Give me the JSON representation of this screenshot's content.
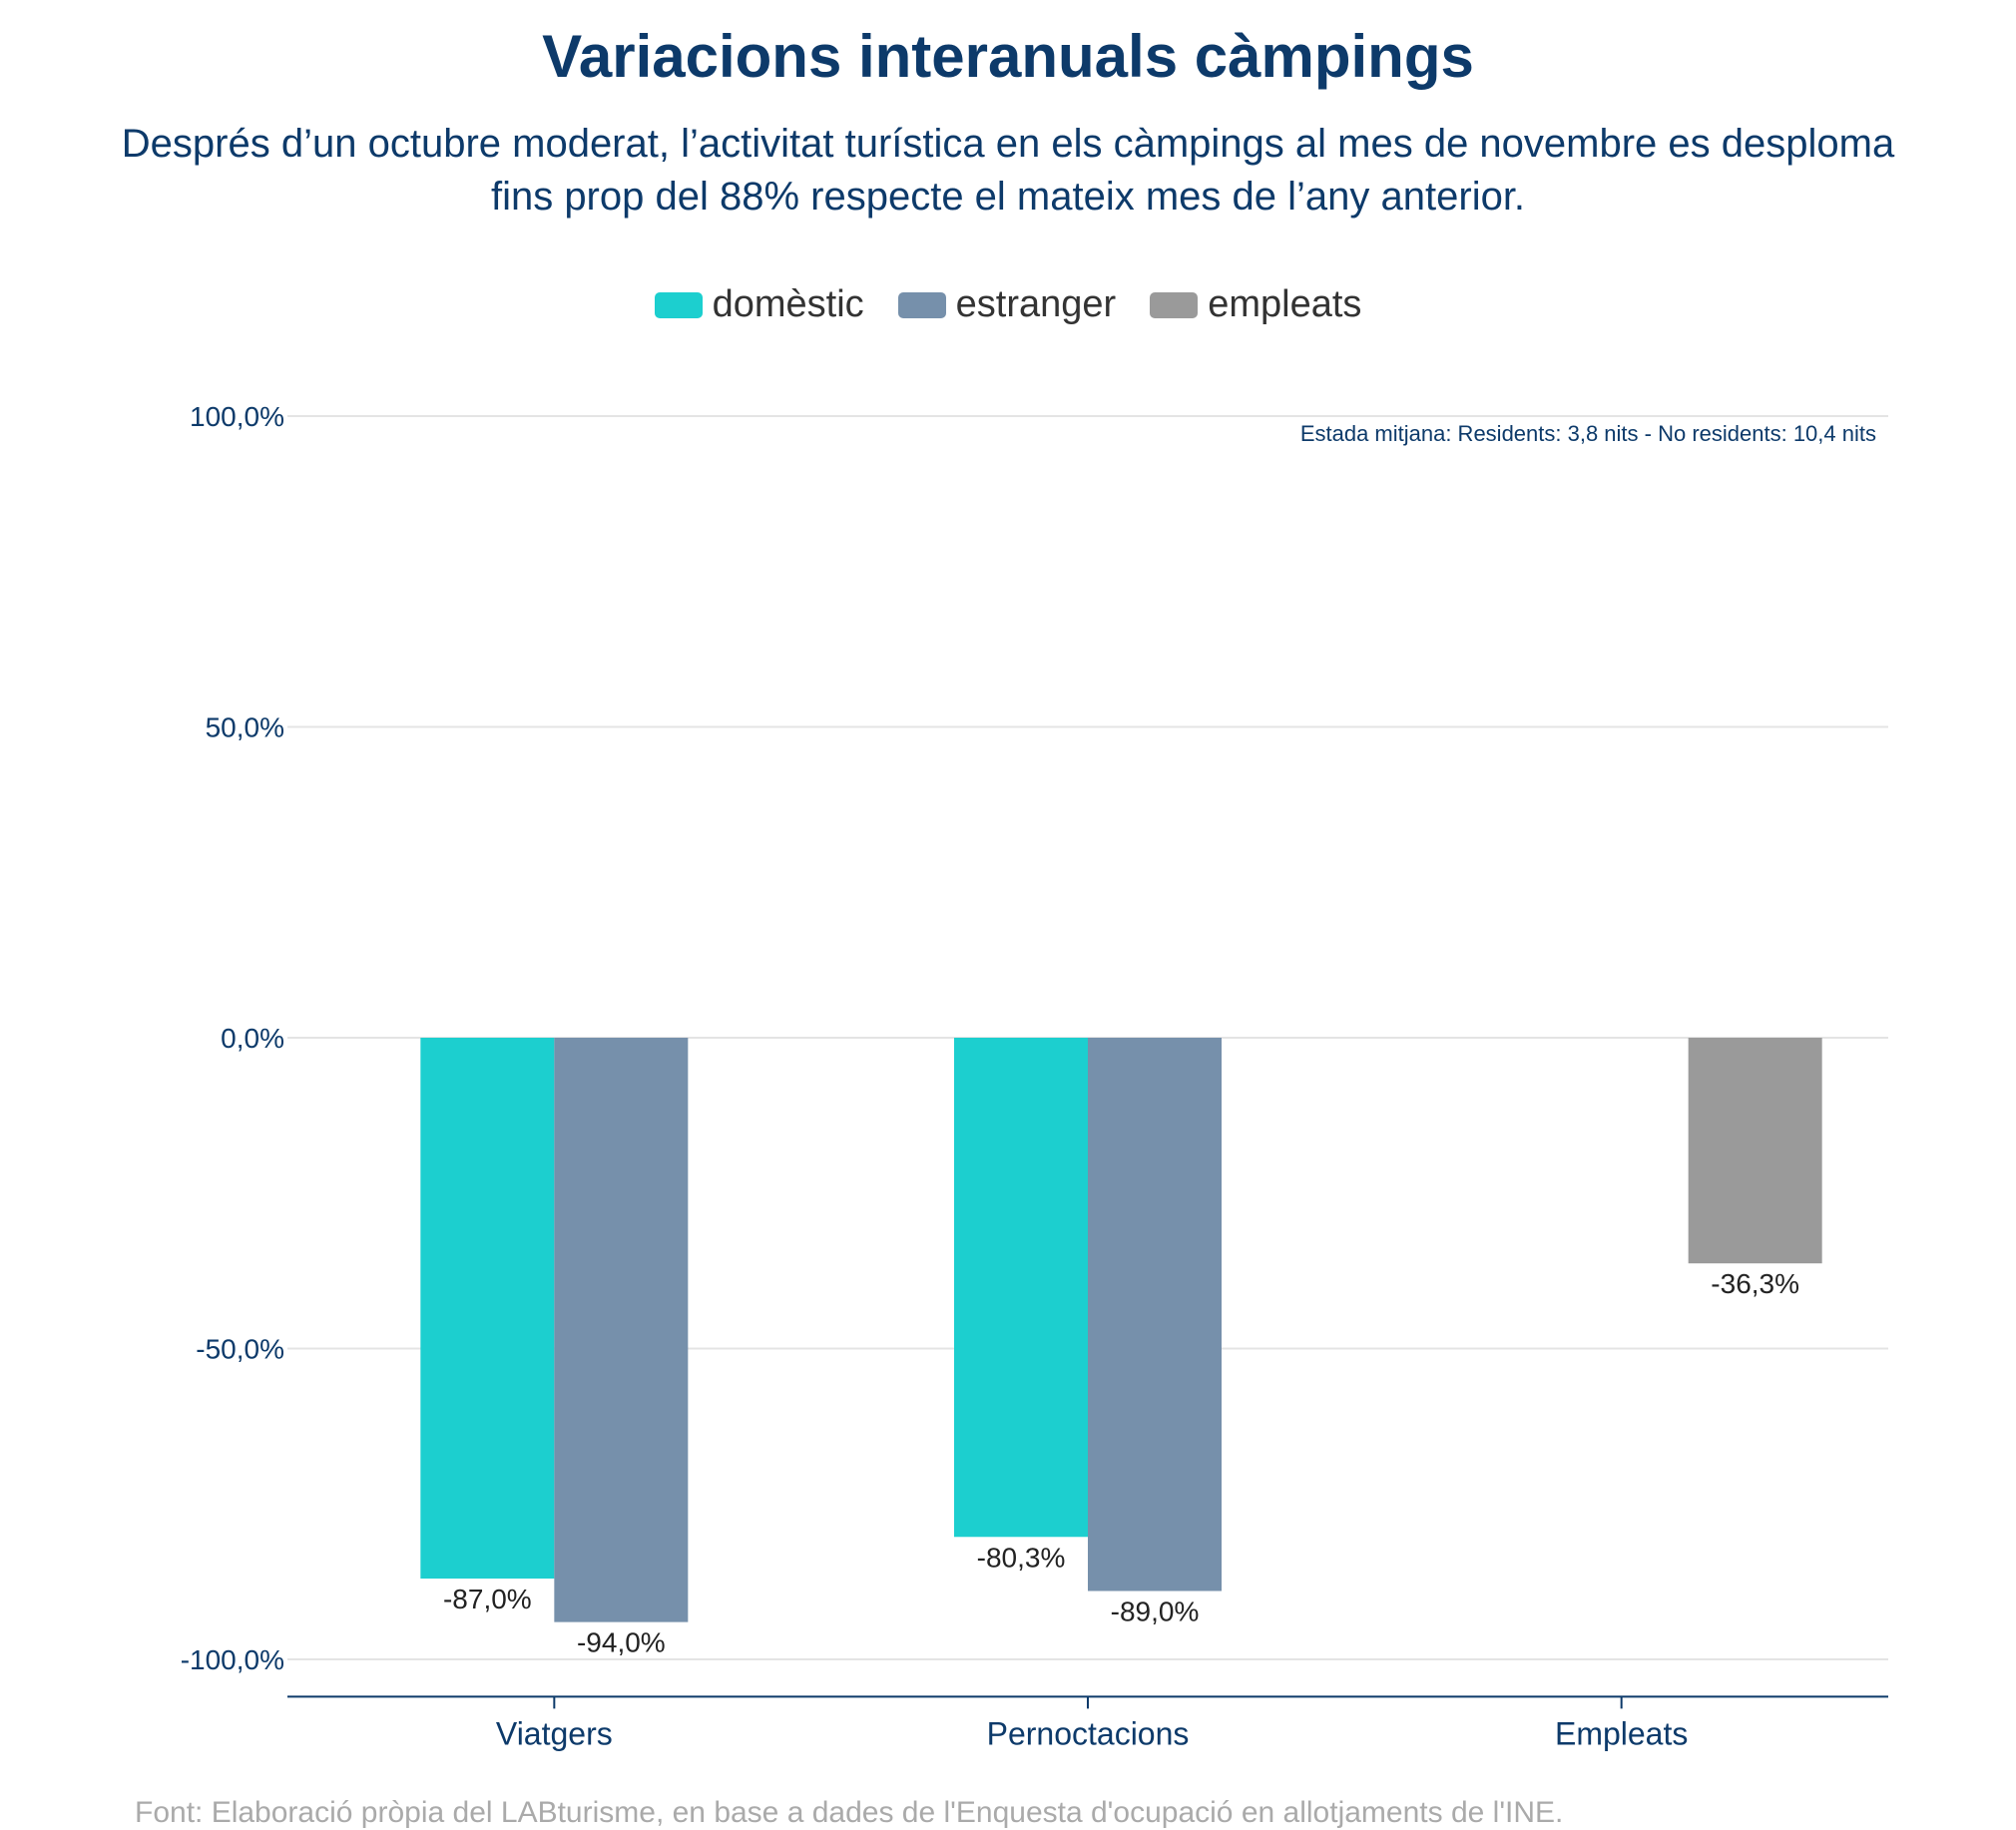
{
  "chart_data": {
    "type": "bar",
    "title": "Variacions interanuals càmpings",
    "subtitle": "Després d’un octubre moderat, l’activitat turística en els càmpings al mes de novembre es desploma fins prop del 88% respecte el mateix mes de l’any anterior.",
    "annotation": "Estada mitjana: Residents: 3,8 nits - No residents: 10,4 nits",
    "categories": [
      "Viatgers",
      "Pernoctacions",
      "Empleats"
    ],
    "series": [
      {
        "name": "domèstic",
        "color": "#1ccfcf",
        "values": [
          -87.0,
          -80.3,
          null
        ],
        "labels": [
          "-87,0%",
          "-80,3%",
          ""
        ]
      },
      {
        "name": "estranger",
        "color": "#7690ab",
        "values": [
          -94.0,
          -89.0,
          null
        ],
        "labels": [
          "-94,0%",
          "-89,0%",
          ""
        ]
      },
      {
        "name": "empleats",
        "color": "#9a9a9a",
        "values": [
          null,
          null,
          -36.3
        ],
        "labels": [
          "",
          "",
          "-36,3%"
        ]
      }
    ],
    "yticks": [
      100,
      50,
      0,
      -50,
      -100
    ],
    "ytick_labels": [
      "100,0%",
      "50,0%",
      "0,0%",
      "-50,0%",
      "-100,0%"
    ],
    "ylim": [
      -106,
      100
    ],
    "grid": true,
    "legend_position": "top-center",
    "source": "Font: Elaboració pròpia del LABturisme, en base a dades de l'Enquesta d'ocupació en allotjaments de l'INE."
  }
}
